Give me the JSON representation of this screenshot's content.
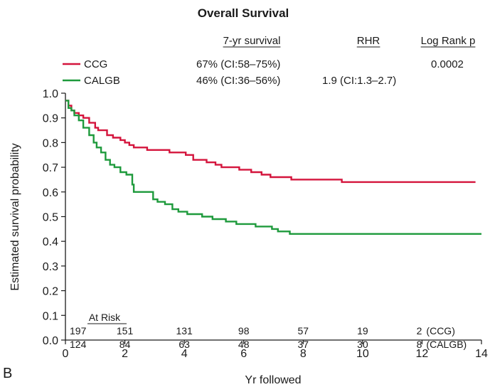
{
  "panel_label": "B",
  "colors": {
    "ccg": "#d4143c",
    "calgb": "#1e9a3c",
    "axis": "#1a1a1a"
  },
  "chart_data": {
    "type": "line",
    "step": true,
    "title": "Overall Survival",
    "xlabel": "Yr followed",
    "ylabel": "Estimated survival probability",
    "xlim": [
      0,
      14
    ],
    "ylim": [
      0,
      1
    ],
    "x_ticks": [
      0,
      2,
      4,
      6,
      8,
      10,
      12,
      14
    ],
    "y_ticks": [
      0.0,
      0.1,
      0.2,
      0.3,
      0.4,
      0.5,
      0.6,
      0.7,
      0.8,
      0.9,
      1.0
    ],
    "x_tick_labels": [
      "0",
      "2",
      "4",
      "6",
      "8",
      "10",
      "12",
      "14"
    ],
    "y_tick_labels": [
      "0.0",
      "0.1",
      "0.2",
      "0.3",
      "0.4",
      "0.5",
      "0.6",
      "0.7",
      "0.8",
      "0.9",
      "1.0"
    ],
    "grid": false,
    "legend_position": "top-left",
    "stats_header": {
      "survival": "7-yr survival",
      "rhr": "RHR",
      "logrank": "Log Rank p"
    },
    "series": [
      {
        "name": "CCG",
        "color": "#d4143c",
        "survival_7yr": "67% (CI:58–75%)",
        "rhr": "",
        "logrank_p": "0.0002",
        "x": [
          0,
          0.1,
          0.2,
          0.3,
          0.45,
          0.6,
          0.8,
          1.0,
          1.1,
          1.4,
          1.6,
          1.85,
          2.0,
          2.15,
          2.3,
          2.5,
          2.75,
          3.2,
          3.5,
          3.95,
          4.05,
          4.3,
          4.55,
          4.75,
          5.05,
          5.25,
          5.5,
          5.85,
          6.25,
          6.6,
          6.9,
          7.6,
          9.3,
          13.8
        ],
        "y": [
          0.97,
          0.95,
          0.93,
          0.92,
          0.91,
          0.9,
          0.88,
          0.86,
          0.85,
          0.83,
          0.82,
          0.81,
          0.8,
          0.79,
          0.78,
          0.78,
          0.77,
          0.77,
          0.76,
          0.76,
          0.75,
          0.73,
          0.73,
          0.72,
          0.71,
          0.7,
          0.7,
          0.69,
          0.68,
          0.67,
          0.66,
          0.65,
          0.64,
          0.64
        ]
      },
      {
        "name": "CALGB",
        "color": "#1e9a3c",
        "survival_7yr": "46% (CI:36–56%)",
        "rhr": "1.9 (CI:1.3–2.7)",
        "logrank_p": "",
        "x": [
          0,
          0.1,
          0.2,
          0.3,
          0.45,
          0.6,
          0.8,
          0.95,
          1.05,
          1.2,
          1.35,
          1.5,
          1.65,
          1.85,
          2.05,
          2.25,
          2.3,
          2.55,
          2.95,
          3.1,
          3.35,
          3.6,
          3.8,
          3.95,
          4.1,
          4.35,
          4.6,
          4.95,
          5.4,
          5.75,
          6.4,
          6.95,
          7.15,
          7.35,
          7.55,
          14.0
        ],
        "y": [
          0.97,
          0.94,
          0.93,
          0.91,
          0.89,
          0.86,
          0.83,
          0.8,
          0.78,
          0.76,
          0.73,
          0.71,
          0.7,
          0.68,
          0.67,
          0.63,
          0.6,
          0.6,
          0.57,
          0.56,
          0.55,
          0.53,
          0.52,
          0.52,
          0.51,
          0.51,
          0.5,
          0.49,
          0.48,
          0.47,
          0.46,
          0.45,
          0.44,
          0.44,
          0.43,
          0.43
        ]
      }
    ],
    "at_risk": {
      "title": "At Risk",
      "times": [
        0,
        2,
        4,
        6,
        8,
        10,
        12
      ],
      "rows": [
        {
          "label": "(CCG)",
          "counts": [
            "197",
            "151",
            "131",
            "98",
            "57",
            "19",
            "2"
          ]
        },
        {
          "label": "(CALGB)",
          "counts": [
            "124",
            "84",
            "63",
            "48",
            "37",
            "30",
            "8"
          ]
        }
      ]
    }
  }
}
